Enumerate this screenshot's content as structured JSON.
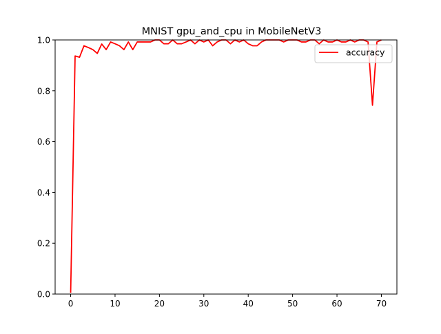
{
  "chart_data": {
    "type": "line",
    "title": "MNIST gpu_and_cpu in MobileNetV3",
    "xlabel": "",
    "ylabel": "",
    "xlim": [
      -3.5,
      73.5
    ],
    "ylim": [
      0.0,
      1.0
    ],
    "xticks": [
      0,
      10,
      20,
      30,
      40,
      50,
      60,
      70
    ],
    "yticks": [
      0.0,
      0.2,
      0.4,
      0.6,
      0.8,
      1.0
    ],
    "xtick_labels": [
      "0",
      "10",
      "20",
      "30",
      "40",
      "50",
      "60",
      "70"
    ],
    "ytick_labels": [
      "0.0",
      "0.2",
      "0.4",
      "0.6",
      "0.8",
      "1.0"
    ],
    "grid": false,
    "legend_position": "top-right",
    "series": [
      {
        "name": "accuracy",
        "color": "#ff0000",
        "x": [
          0,
          1,
          2,
          3,
          4,
          5,
          6,
          7,
          8,
          9,
          10,
          11,
          12,
          13,
          14,
          15,
          16,
          17,
          18,
          19,
          20,
          21,
          22,
          23,
          24,
          25,
          26,
          27,
          28,
          29,
          30,
          31,
          32,
          33,
          34,
          35,
          36,
          37,
          38,
          39,
          40,
          41,
          42,
          43,
          44,
          45,
          46,
          47,
          48,
          49,
          50,
          51,
          52,
          53,
          54,
          55,
          56,
          57,
          58,
          59,
          60,
          61,
          62,
          63,
          64,
          65,
          66,
          67,
          68,
          69,
          70
        ],
        "values": [
          0.005,
          0.937,
          0.932,
          0.977,
          0.97,
          0.962,
          0.947,
          0.984,
          0.962,
          0.992,
          0.985,
          0.977,
          0.962,
          0.992,
          0.962,
          0.992,
          0.992,
          0.992,
          0.992,
          1.0,
          1.0,
          0.985,
          0.985,
          1.0,
          0.985,
          0.985,
          0.992,
          1.0,
          0.985,
          1.0,
          0.992,
          1.0,
          0.977,
          0.992,
          1.0,
          1.0,
          0.985,
          1.0,
          0.992,
          1.0,
          0.985,
          0.977,
          0.977,
          0.992,
          1.0,
          1.0,
          1.0,
          1.0,
          0.992,
          1.0,
          1.0,
          1.0,
          0.992,
          0.992,
          1.0,
          1.0,
          0.985,
          1.0,
          0.992,
          0.992,
          1.0,
          0.992,
          0.992,
          1.0,
          0.992,
          1.0,
          1.0,
          0.992,
          0.743,
          0.992,
          1.0
        ]
      }
    ]
  }
}
